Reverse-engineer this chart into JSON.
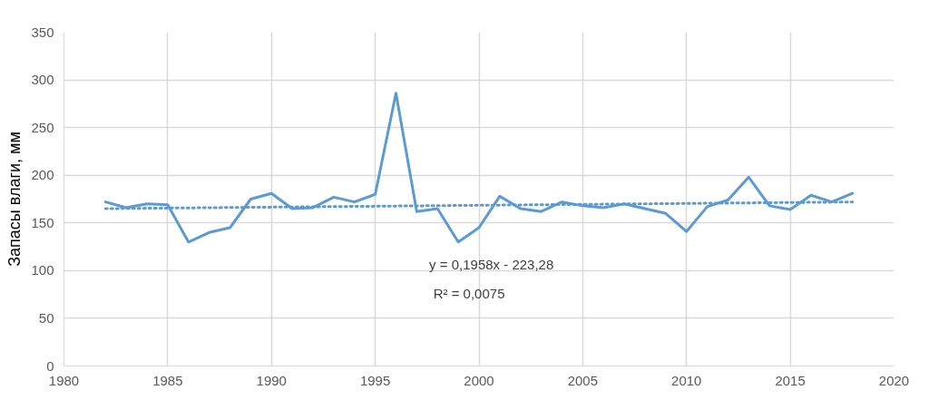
{
  "chart_data": {
    "type": "line",
    "ylabel": "Запасы влаги, мм",
    "xlim": [
      1980,
      2020
    ],
    "xticks": [
      1980,
      1985,
      1990,
      1995,
      2000,
      2005,
      2010,
      2015,
      2020
    ],
    "ylim": [
      0,
      350
    ],
    "yticks": [
      0,
      50,
      100,
      150,
      200,
      250,
      300,
      350
    ],
    "grid": true,
    "x": [
      1982,
      1983,
      1984,
      1985,
      1986,
      1987,
      1988,
      1989,
      1990,
      1991,
      1992,
      1993,
      1994,
      1995,
      1996,
      1997,
      1998,
      1999,
      2000,
      2001,
      2002,
      2003,
      2004,
      2005,
      2006,
      2007,
      2008,
      2009,
      2010,
      2011,
      2012,
      2013,
      2014,
      2015,
      2016,
      2017,
      2018
    ],
    "series": [
      {
        "color": "#5b9bd5",
        "line_style": "solid",
        "values": [
          172,
          166,
          170,
          169,
          130,
          140,
          145,
          175,
          181,
          165,
          166,
          177,
          172,
          180,
          286,
          162,
          165,
          130,
          145,
          178,
          165,
          162,
          172,
          168,
          166,
          170,
          165,
          160,
          141,
          167,
          174,
          198,
          168,
          164,
          179,
          172,
          181
        ]
      },
      {
        "color": "#5b9bd5",
        "line_style": "dotted",
        "x": [
          1982,
          2018
        ],
        "values": [
          165,
          172
        ]
      }
    ],
    "annotations": [
      "y = 0,1958x - 223,28",
      "R² = 0,0075"
    ]
  }
}
